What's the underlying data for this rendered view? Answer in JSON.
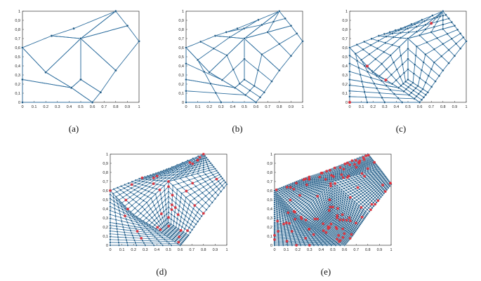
{
  "figure": {
    "panels": [
      {
        "caption": "(a)",
        "level": 0,
        "refined_nodes": 0
      },
      {
        "caption": "(b)",
        "level": 1,
        "refined_nodes": 0
      },
      {
        "caption": "(c)",
        "level": 2,
        "refined_nodes": 4
      },
      {
        "caption": "(d)",
        "level": 3,
        "refined_nodes": 40
      },
      {
        "caption": "(e)",
        "level": 4,
        "refined_nodes": 120
      }
    ],
    "axis": {
      "x_ticks": [
        "0",
        "0.1",
        "0.2",
        "0.3",
        "0.4",
        "0.5",
        "0.6",
        "0.7",
        "0.8",
        "0.9",
        "1"
      ],
      "y_ticks": [
        "0",
        "0,1",
        "0,2",
        "0,3",
        "0,4",
        "0,5",
        "0,6",
        "0,7",
        "0,8",
        "0,9",
        "1"
      ]
    },
    "colors": {
      "mesh": "#2f6f9f",
      "node": "#1f5a85",
      "refined": "#e0303a"
    }
  },
  "chart_data": {
    "type": "diagram",
    "xlim": [
      0,
      1
    ],
    "ylim": [
      0,
      1
    ],
    "base_nodes": [
      {
        "id": "P0",
        "x": 0.0,
        "y": 0.0
      },
      {
        "id": "P1",
        "x": 0.0,
        "y": 0.25
      },
      {
        "id": "P2",
        "x": 0.0,
        "y": 0.6
      },
      {
        "id": "P3",
        "x": 0.2,
        "y": 0.33
      },
      {
        "id": "P4",
        "x": 0.25,
        "y": 0.73
      },
      {
        "id": "P5",
        "x": 0.42,
        "y": 0.16
      },
      {
        "id": "P6",
        "x": 0.44,
        "y": 0.81
      },
      {
        "id": "P7",
        "x": 0.5,
        "y": 0.25
      },
      {
        "id": "P8",
        "x": 0.5,
        "y": 0.7
      },
      {
        "id": "P9",
        "x": 0.6,
        "y": 0.0
      },
      {
        "id": "P10",
        "x": 0.67,
        "y": 0.11
      },
      {
        "id": "P11",
        "x": 0.8,
        "y": 1.0
      },
      {
        "id": "P12",
        "x": 0.8,
        "y": 0.35
      },
      {
        "id": "P13",
        "x": 0.9,
        "y": 0.84
      },
      {
        "id": "P14",
        "x": 1.0,
        "y": 0.67
      }
    ],
    "quads": [
      [
        "P0",
        "P9",
        "P5",
        "P1"
      ],
      [
        "P1",
        "P5",
        "P3",
        "P2"
      ],
      [
        "P2",
        "P3",
        "P8",
        "P4"
      ],
      [
        "P4",
        "P8",
        "P11",
        "P6"
      ],
      [
        "P3",
        "P5",
        "P7",
        "P8"
      ],
      [
        "P5",
        "P9",
        "P10",
        "P7"
      ],
      [
        "P7",
        "P10",
        "P12",
        "P8"
      ],
      [
        "P8",
        "P12",
        "P14",
        "P13"
      ],
      [
        "P8",
        "P13",
        "P11",
        "P11"
      ]
    ]
  }
}
